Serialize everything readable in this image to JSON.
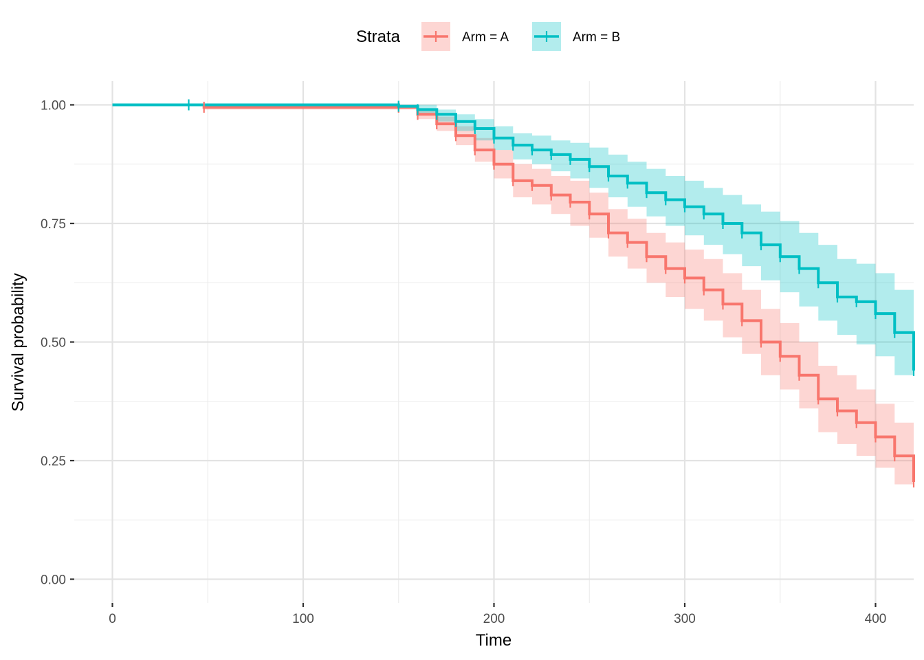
{
  "chart_data": {
    "type": "line",
    "subtype": "kaplan-meier",
    "title": "",
    "xlabel": "Time",
    "ylabel": "Survival probability",
    "xlim": [
      -20,
      420
    ],
    "ylim": [
      -0.05,
      1.05
    ],
    "x_ticks": [
      0,
      100,
      200,
      300,
      400
    ],
    "x_tick_labels": [
      "0",
      "100",
      "200",
      "300",
      "400"
    ],
    "y_ticks": [
      0,
      0.25,
      0.5,
      0.75,
      1.0
    ],
    "y_tick_labels": [
      "0.00",
      "0.25",
      "0.50",
      "0.75",
      "1.00"
    ],
    "grid": true,
    "legend": {
      "title": "Strata",
      "position": "top"
    },
    "series": [
      {
        "name": "Arm = A",
        "color": "#F8766D",
        "band_color": "#F8766D",
        "x": [
          0,
          48,
          150,
          160,
          170,
          180,
          190,
          200,
          210,
          220,
          230,
          240,
          250,
          260,
          270,
          280,
          290,
          300,
          310,
          320,
          330,
          340,
          350,
          360,
          370,
          380,
          390,
          400,
          410,
          420
        ],
        "y": [
          1.0,
          0.995,
          0.995,
          0.98,
          0.96,
          0.935,
          0.905,
          0.875,
          0.84,
          0.83,
          0.81,
          0.795,
          0.77,
          0.73,
          0.71,
          0.68,
          0.655,
          0.635,
          0.61,
          0.58,
          0.545,
          0.5,
          0.47,
          0.43,
          0.38,
          0.355,
          0.33,
          0.3,
          0.26,
          0.205
        ],
        "lower": [
          1.0,
          0.99,
          0.99,
          0.97,
          0.945,
          0.915,
          0.88,
          0.845,
          0.805,
          0.79,
          0.77,
          0.745,
          0.72,
          0.68,
          0.655,
          0.625,
          0.595,
          0.57,
          0.545,
          0.51,
          0.475,
          0.43,
          0.4,
          0.36,
          0.31,
          0.285,
          0.26,
          0.235,
          0.2,
          0.165
        ],
        "upper": [
          1.0,
          1.0,
          1.0,
          0.99,
          0.975,
          0.955,
          0.93,
          0.905,
          0.875,
          0.865,
          0.85,
          0.84,
          0.815,
          0.78,
          0.76,
          0.73,
          0.71,
          0.695,
          0.675,
          0.645,
          0.61,
          0.57,
          0.54,
          0.5,
          0.45,
          0.43,
          0.4,
          0.37,
          0.33,
          0.27
        ]
      },
      {
        "name": "Arm = B",
        "color": "#00BFC4",
        "band_color": "#00BFC4",
        "x": [
          0,
          40,
          150,
          160,
          170,
          180,
          190,
          200,
          210,
          220,
          230,
          240,
          250,
          260,
          270,
          280,
          290,
          300,
          310,
          320,
          330,
          340,
          350,
          360,
          370,
          380,
          390,
          400,
          410,
          420
        ],
        "y": [
          1.0,
          1.0,
          0.997,
          0.99,
          0.98,
          0.965,
          0.95,
          0.93,
          0.915,
          0.905,
          0.895,
          0.885,
          0.87,
          0.85,
          0.835,
          0.815,
          0.8,
          0.785,
          0.77,
          0.75,
          0.73,
          0.705,
          0.68,
          0.655,
          0.625,
          0.595,
          0.585,
          0.56,
          0.52,
          0.44
        ],
        "lower": [
          1.0,
          1.0,
          0.993,
          0.98,
          0.965,
          0.945,
          0.925,
          0.905,
          0.885,
          0.875,
          0.86,
          0.845,
          0.825,
          0.805,
          0.785,
          0.765,
          0.745,
          0.725,
          0.705,
          0.685,
          0.66,
          0.63,
          0.605,
          0.575,
          0.545,
          0.515,
          0.495,
          0.47,
          0.43,
          0.37
        ],
        "upper": [
          1.0,
          1.0,
          1.0,
          1.0,
          0.99,
          0.98,
          0.97,
          0.955,
          0.94,
          0.935,
          0.925,
          0.92,
          0.91,
          0.895,
          0.88,
          0.865,
          0.85,
          0.84,
          0.825,
          0.81,
          0.79,
          0.775,
          0.755,
          0.73,
          0.705,
          0.675,
          0.665,
          0.645,
          0.61,
          0.52
        ]
      }
    ]
  }
}
